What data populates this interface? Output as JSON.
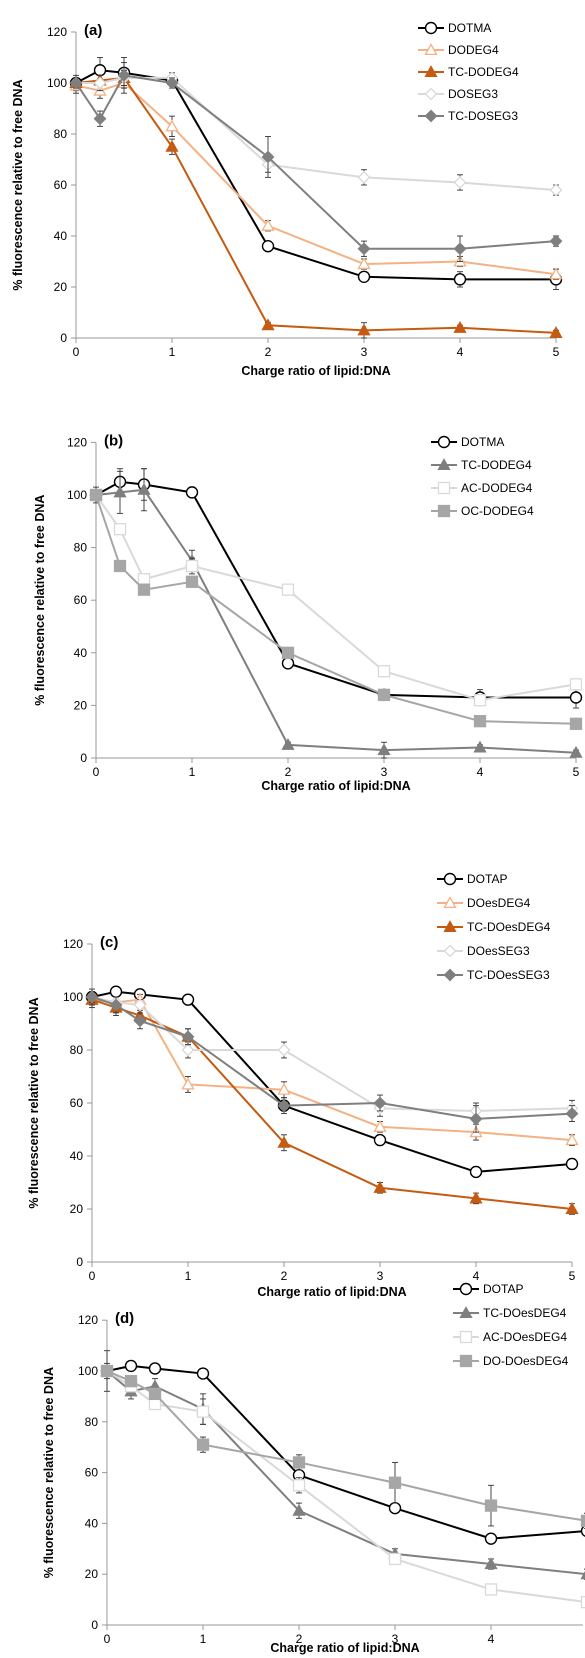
{
  "chart_data": [
    {
      "type": "line",
      "panel_label": "(a)",
      "xlabel": "Charge ratio of lipid:DNA",
      "ylabel": "% fluorescence relative to free DNA",
      "x": [
        0,
        0.25,
        0.5,
        1,
        2,
        3,
        4,
        5
      ],
      "xticks": [
        0,
        1,
        2,
        3,
        4,
        5
      ],
      "yticks": [
        0,
        20,
        40,
        60,
        80,
        100,
        120
      ],
      "xlim": [
        0,
        5
      ],
      "ylim": [
        0,
        120
      ],
      "legend_position": "top-right",
      "series": [
        {
          "name": "DOTMA",
          "color": "#000000",
          "marker": "circle-open",
          "values": [
            100,
            105,
            104,
            101,
            36,
            24,
            23,
            23
          ],
          "errors": [
            3,
            5,
            6,
            2,
            2,
            2,
            3,
            4
          ]
        },
        {
          "name": "DODEG4",
          "color": "#f4b183",
          "marker": "triangle-open",
          "values": [
            99,
            97,
            100,
            83,
            44,
            29,
            30,
            25
          ],
          "errors": [
            3,
            3,
            4,
            4,
            2,
            2,
            2,
            2
          ]
        },
        {
          "name": "TC-DODEG4",
          "color": "#c55a11",
          "marker": "triangle-filled",
          "values": [
            100,
            101,
            102,
            75,
            5,
            3,
            4,
            2
          ],
          "errors": [
            2,
            2,
            3,
            3,
            1,
            3,
            1,
            1
          ]
        },
        {
          "name": "DOSEG3",
          "color": "#d9d9d9",
          "marker": "diamond-open",
          "values": [
            100,
            100,
            102,
            102,
            68,
            63,
            61,
            58
          ],
          "errors": [
            2,
            3,
            3,
            2,
            3,
            3,
            3,
            2
          ]
        },
        {
          "name": "TC-DOSEG3",
          "color": "#7f7f7f",
          "marker": "diamond-filled",
          "values": [
            100,
            86,
            103,
            100,
            71,
            35,
            35,
            38
          ],
          "errors": [
            2,
            3,
            5,
            2,
            8,
            3,
            5,
            2
          ]
        }
      ]
    },
    {
      "type": "line",
      "panel_label": "(b)",
      "xlabel": "Charge ratio of lipid:DNA",
      "ylabel": "% fluorescence relative to free DNA",
      "x": [
        0,
        0.25,
        0.5,
        1,
        2,
        3,
        4,
        5
      ],
      "xticks": [
        0,
        1,
        2,
        3,
        4,
        5
      ],
      "yticks": [
        0,
        20,
        40,
        60,
        80,
        100,
        120
      ],
      "xlim": [
        0,
        5
      ],
      "ylim": [
        0,
        120
      ],
      "legend_position": "top-right",
      "series": [
        {
          "name": "DOTMA",
          "color": "#000000",
          "marker": "circle-open",
          "values": [
            100,
            105,
            104,
            101,
            36,
            24,
            23,
            23
          ],
          "errors": [
            3,
            5,
            6,
            2,
            2,
            2,
            3,
            4
          ]
        },
        {
          "name": "TC-DODEG4",
          "color": "#7f7f7f",
          "marker": "triangle-filled",
          "values": [
            100,
            101,
            102,
            75,
            5,
            3,
            4,
            2
          ],
          "errors": [
            2,
            8,
            8,
            4,
            1,
            3,
            1,
            1
          ]
        },
        {
          "name": "AC-DODEG4",
          "color": "#d9d9d9",
          "marker": "square-open",
          "values": [
            100,
            87,
            68,
            73,
            64,
            33,
            22,
            28
          ],
          "errors": [
            2,
            2,
            2,
            3,
            2,
            2,
            2,
            2
          ]
        },
        {
          "name": "OC-DODEG4",
          "color": "#a6a6a6",
          "marker": "square-filled",
          "values": [
            100,
            73,
            64,
            67,
            40,
            24,
            14,
            13
          ],
          "errors": [
            2,
            2,
            2,
            2,
            2,
            2,
            2,
            2
          ]
        }
      ]
    },
    {
      "type": "line",
      "panel_label": "(c)",
      "xlabel": "Charge ratio of lipid:DNA",
      "ylabel": "% fluorescence relative to free DNA",
      "x": [
        0,
        0.25,
        0.5,
        1,
        2,
        3,
        4,
        5
      ],
      "xticks": [
        0,
        1,
        2,
        3,
        4,
        5
      ],
      "yticks": [
        0,
        20,
        40,
        60,
        80,
        100,
        120
      ],
      "xlim": [
        0,
        5
      ],
      "ylim": [
        0,
        120
      ],
      "legend_position": "top-right",
      "series": [
        {
          "name": "DOTAP",
          "color": "#000000",
          "marker": "circle-open",
          "values": [
            100,
            102,
            101,
            99,
            59,
            46,
            34,
            37
          ],
          "errors": [
            2,
            2,
            2,
            2,
            2,
            2,
            2,
            2
          ]
        },
        {
          "name": "DOesDEG4",
          "color": "#f4b183",
          "marker": "triangle-open",
          "values": [
            99,
            98,
            99,
            67,
            65,
            51,
            49,
            46
          ],
          "errors": [
            2,
            2,
            2,
            3,
            3,
            2,
            3,
            2
          ]
        },
        {
          "name": "TC-DOesDEG4",
          "color": "#c55a11",
          "marker": "triangle-filled",
          "values": [
            99,
            96,
            93,
            85,
            45,
            28,
            24,
            20
          ],
          "errors": [
            3,
            3,
            3,
            3,
            3,
            2,
            2,
            2
          ]
        },
        {
          "name": "DOesSEG3",
          "color": "#d9d9d9",
          "marker": "diamond-open",
          "values": [
            100,
            98,
            97,
            80,
            80,
            58,
            57,
            58
          ],
          "errors": [
            2,
            2,
            2,
            3,
            3,
            3,
            3,
            3
          ]
        },
        {
          "name": "TC-DOesSEG3",
          "color": "#7f7f7f",
          "marker": "diamond-filled",
          "values": [
            100,
            97,
            91,
            85,
            59,
            60,
            54,
            56
          ],
          "errors": [
            3,
            3,
            3,
            3,
            3,
            3,
            5,
            3
          ]
        }
      ]
    },
    {
      "type": "line",
      "panel_label": "(d)",
      "xlabel": "Charge ratio of lipid:DNA",
      "ylabel": "% fluorescence relative to free DNA",
      "x": [
        0,
        0.25,
        0.5,
        1,
        2,
        3,
        4,
        5
      ],
      "xticks": [
        0,
        1,
        2,
        3,
        4
      ],
      "yticks": [
        0,
        20,
        40,
        60,
        80,
        100,
        120
      ],
      "xlim": [
        0,
        5
      ],
      "ylim": [
        0,
        120
      ],
      "legend_position": "top-right",
      "series": [
        {
          "name": "DOTAP",
          "color": "#000000",
          "marker": "circle-open",
          "values": [
            100,
            102,
            101,
            99,
            59,
            46,
            34,
            37
          ],
          "errors": [
            8,
            2,
            2,
            2,
            2,
            2,
            2,
            2
          ]
        },
        {
          "name": "TC-DOesDEG4",
          "color": "#7f7f7f",
          "marker": "triangle-filled",
          "values": [
            100,
            92,
            94,
            85,
            45,
            28,
            24,
            20
          ],
          "errors": [
            3,
            3,
            3,
            6,
            3,
            2,
            2,
            2
          ]
        },
        {
          "name": "AC-DOesDEG4",
          "color": "#d9d9d9",
          "marker": "square-open",
          "values": [
            100,
            94,
            87,
            84,
            55,
            26,
            14,
            9
          ],
          "errors": [
            2,
            2,
            2,
            5,
            3,
            2,
            2,
            2
          ]
        },
        {
          "name": "DO-DOesDEG4",
          "color": "#a6a6a6",
          "marker": "square-filled",
          "values": [
            100,
            96,
            91,
            71,
            64,
            56,
            47,
            41
          ],
          "errors": [
            2,
            2,
            2,
            3,
            3,
            8,
            8,
            3
          ]
        }
      ]
    }
  ]
}
